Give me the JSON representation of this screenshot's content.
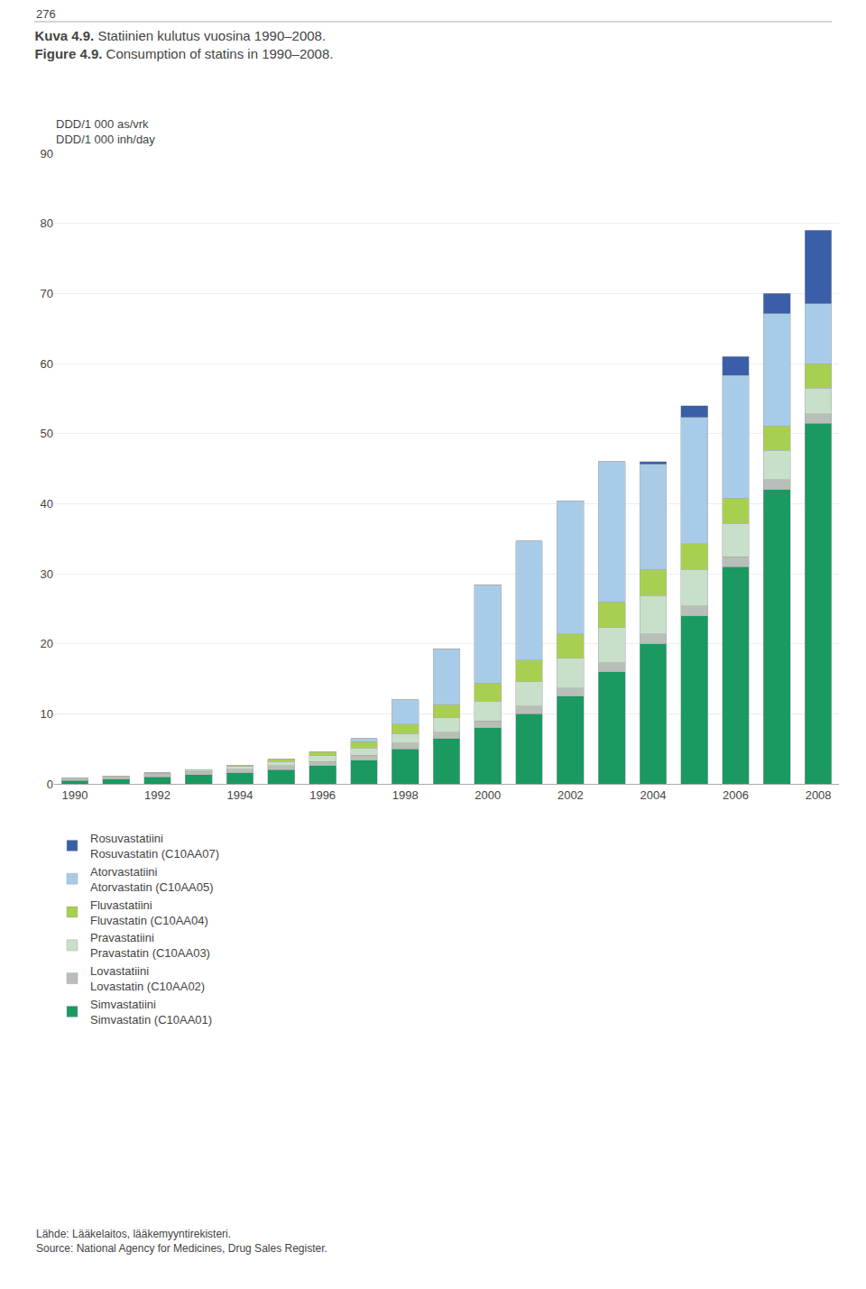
{
  "chart_data": {
    "type": "bar",
    "stacked": true,
    "header": "276",
    "title": "Kuva 4.9. Statiinien kulutus vuosina 1990–2008.\nFigure 4.9. Consumption of statins in 1990–2008.",
    "ylabel": "DDD/1 000 as/vrk\nDDD/1 000 inh/day",
    "source": "Lähde: Lääkelaitos, lääkemyyntirekisteri.\nSource: National Agency for Medicines, Drug Sales Register.",
    "x": [
      1990,
      1991,
      1992,
      1993,
      1994,
      1995,
      1996,
      1997,
      1998,
      1999,
      2000,
      2001,
      2002,
      2003,
      2004,
      2005,
      2006,
      2007,
      2008
    ],
    "xlim": [
      1989.5,
      2008.5
    ],
    "xticks": [
      1990,
      1992,
      1994,
      1996,
      1998,
      2000,
      2002,
      2004,
      2006,
      2008
    ],
    "ylim": [
      0,
      90
    ],
    "yticks": [
      0,
      10,
      20,
      30,
      40,
      50,
      60,
      70,
      80,
      90
    ],
    "grid": true,
    "legend": "bottom",
    "series": [
      {
        "name": "Simvastatiini\nSimvastatin (C10AA01)",
        "color": "#1a9960",
        "values": [
          0.5,
          0.7,
          1.0,
          1.3,
          1.6,
          2.0,
          2.6,
          3.4,
          5.0,
          6.5,
          8.0,
          10.0,
          12.5,
          16.0,
          20.0,
          24.0,
          31.0,
          42.0,
          51.5
        ]
      },
      {
        "name": "Lovastatiini\nLovastatin (C10AA02)",
        "color": "#b8bfb8",
        "values": [
          0.4,
          0.4,
          0.5,
          0.5,
          0.5,
          0.6,
          0.6,
          0.7,
          0.8,
          0.9,
          1.0,
          1.1,
          1.2,
          1.3,
          1.4,
          1.4,
          1.4,
          1.4,
          1.3
        ]
      },
      {
        "name": "Pravastatiini\nPravastatin (C10AA03)",
        "color": "#c8dfca",
        "values": [
          0.0,
          0.0,
          0.1,
          0.2,
          0.4,
          0.6,
          0.8,
          1.0,
          1.4,
          2.0,
          2.8,
          3.5,
          4.2,
          5.0,
          5.5,
          5.2,
          4.8,
          4.2,
          3.7
        ]
      },
      {
        "name": "Fluvastatiini\nFluvastatin (C10AA04)",
        "color": "#a8d050",
        "values": [
          0.0,
          0.0,
          0.0,
          0.0,
          0.1,
          0.3,
          0.6,
          0.9,
          1.3,
          1.9,
          2.6,
          3.1,
          3.5,
          3.7,
          3.7,
          3.7,
          3.6,
          3.5,
          3.5
        ]
      },
      {
        "name": "Atorvastatiini\nAtorvastatin (C10AA05)",
        "color": "#a8cce8",
        "values": [
          0.0,
          0.0,
          0.0,
          0.0,
          0.0,
          0.0,
          0.0,
          0.5,
          3.5,
          8.0,
          14.0,
          17.0,
          19.0,
          20.0,
          15.0,
          18.0,
          17.5,
          16.0,
          8.5
        ]
      },
      {
        "name": "Rosuvastatiini\nRosuvastatin (C10AA07)",
        "color": "#3a5fa8",
        "values": [
          0.0,
          0.0,
          0.0,
          0.0,
          0.0,
          0.0,
          0.0,
          0.0,
          0.0,
          0.0,
          0.0,
          0.0,
          0.0,
          0.0,
          0.4,
          1.7,
          2.7,
          2.9,
          10.5
        ]
      }
    ]
  }
}
